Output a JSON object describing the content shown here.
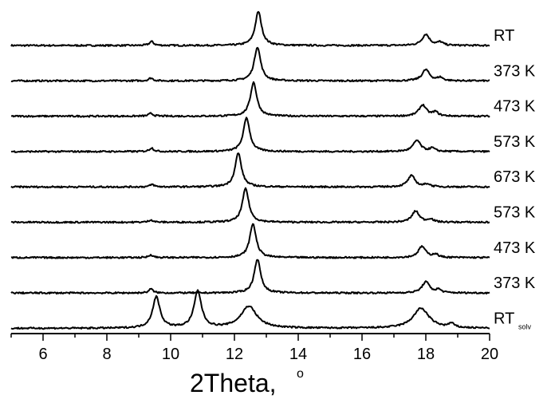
{
  "chart_data": {
    "type": "line",
    "title": "",
    "xlabel": "2Theta,",
    "xlabel_unit": "o",
    "ylabel": "",
    "xlim": [
      5,
      20
    ],
    "xticks": [
      6,
      8,
      10,
      12,
      14,
      16,
      18,
      20
    ],
    "x_minor_step": 1,
    "y_axis_visible": false,
    "grid": false,
    "legend": "inline-right",
    "series": [
      {
        "name": "RT",
        "sub": "",
        "offset": 0,
        "peaks": [
          {
            "x": 9.4,
            "h": 0.1,
            "w": 0.08
          },
          {
            "x": 12.75,
            "h": 0.85,
            "w": 0.12
          },
          {
            "x": 18.0,
            "h": 0.28,
            "w": 0.14
          },
          {
            "x": 18.45,
            "h": 0.08,
            "w": 0.1
          }
        ]
      },
      {
        "name": "373 K",
        "sub": "",
        "offset": 1,
        "peaks": [
          {
            "x": 9.38,
            "h": 0.07,
            "w": 0.08
          },
          {
            "x": 12.72,
            "h": 0.85,
            "w": 0.12
          },
          {
            "x": 18.0,
            "h": 0.28,
            "w": 0.14
          },
          {
            "x": 18.45,
            "h": 0.08,
            "w": 0.1
          }
        ]
      },
      {
        "name": "473 K",
        "sub": "",
        "offset": 2,
        "peaks": [
          {
            "x": 9.38,
            "h": 0.07,
            "w": 0.08
          },
          {
            "x": 12.6,
            "h": 0.85,
            "w": 0.12
          },
          {
            "x": 17.9,
            "h": 0.28,
            "w": 0.14
          },
          {
            "x": 18.3,
            "h": 0.1,
            "w": 0.1
          }
        ]
      },
      {
        "name": "573 K",
        "sub": "",
        "offset": 3,
        "peaks": [
          {
            "x": 9.4,
            "h": 0.09,
            "w": 0.08
          },
          {
            "x": 12.38,
            "h": 0.85,
            "w": 0.12
          },
          {
            "x": 17.72,
            "h": 0.28,
            "w": 0.14
          },
          {
            "x": 18.2,
            "h": 0.08,
            "w": 0.1
          }
        ]
      },
      {
        "name": "673 K",
        "sub": "",
        "offset": 4,
        "peaks": [
          {
            "x": 9.42,
            "h": 0.06,
            "w": 0.08
          },
          {
            "x": 12.12,
            "h": 0.85,
            "w": 0.12
          },
          {
            "x": 17.55,
            "h": 0.28,
            "w": 0.14
          },
          {
            "x": 18.05,
            "h": 0.07,
            "w": 0.1
          }
        ]
      },
      {
        "name": "573 K",
        "sub": "",
        "offset": 5,
        "peaks": [
          {
            "x": 9.38,
            "h": 0.06,
            "w": 0.08
          },
          {
            "x": 12.35,
            "h": 0.85,
            "w": 0.12
          },
          {
            "x": 17.68,
            "h": 0.28,
            "w": 0.14
          },
          {
            "x": 18.15,
            "h": 0.08,
            "w": 0.1
          }
        ]
      },
      {
        "name": "473 K",
        "sub": "",
        "offset": 6,
        "peaks": [
          {
            "x": 9.38,
            "h": 0.07,
            "w": 0.08
          },
          {
            "x": 12.58,
            "h": 0.85,
            "w": 0.12
          },
          {
            "x": 17.88,
            "h": 0.28,
            "w": 0.14
          },
          {
            "x": 18.3,
            "h": 0.08,
            "w": 0.1
          }
        ]
      },
      {
        "name": "373 K",
        "sub": "",
        "offset": 7,
        "peaks": [
          {
            "x": 9.38,
            "h": 0.1,
            "w": 0.08
          },
          {
            "x": 12.72,
            "h": 0.85,
            "w": 0.12
          },
          {
            "x": 18.0,
            "h": 0.28,
            "w": 0.14
          },
          {
            "x": 18.4,
            "h": 0.08,
            "w": 0.1
          }
        ]
      },
      {
        "name": "RT",
        "sub": "solv",
        "offset": 8,
        "peaks": [
          {
            "x": 9.55,
            "h": 0.78,
            "w": 0.14
          },
          {
            "x": 10.85,
            "h": 0.92,
            "w": 0.14
          },
          {
            "x": 12.45,
            "h": 0.55,
            "w": 0.3
          },
          {
            "x": 17.85,
            "h": 0.5,
            "w": 0.3
          },
          {
            "x": 18.8,
            "h": 0.1,
            "w": 0.1
          }
        ]
      }
    ]
  }
}
